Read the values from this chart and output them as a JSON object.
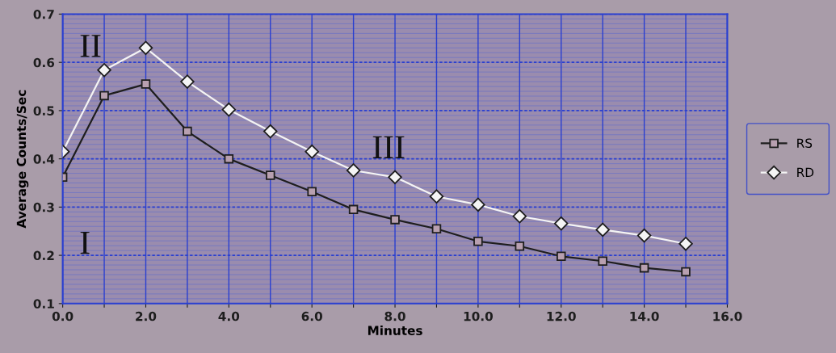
{
  "chart_data": {
    "type": "line",
    "xlabel": "Minutes",
    "ylabel": "Average Counts/Sec",
    "x": [
      0,
      1,
      2,
      3,
      4,
      5,
      6,
      7,
      8,
      9,
      10,
      11,
      12,
      13,
      14,
      15
    ],
    "series": [
      {
        "name": "RS",
        "color": "#1e1e1e",
        "marker": "square",
        "values": [
          0.362,
          0.531,
          0.555,
          0.457,
          0.4,
          0.366,
          0.332,
          0.295,
          0.274,
          0.255,
          0.229,
          0.219,
          0.198,
          0.188,
          0.174,
          0.166
        ]
      },
      {
        "name": "RD",
        "color": "#f4f4f4",
        "marker": "diamond",
        "values": [
          0.415,
          0.584,
          0.63,
          0.56,
          0.502,
          0.457,
          0.415,
          0.376,
          0.362,
          0.322,
          0.305,
          0.281,
          0.266,
          0.253,
          0.241,
          0.224
        ]
      }
    ],
    "xlim": [
      0,
      16
    ],
    "ylim": [
      0.1,
      0.7
    ],
    "xticks": [
      {
        "value": 0,
        "label": "0.0"
      },
      {
        "value": 1,
        "label": null
      },
      {
        "value": 2,
        "label": "2.0"
      },
      {
        "value": 3,
        "label": null
      },
      {
        "value": 4,
        "label": "4.0"
      },
      {
        "value": 5,
        "label": null
      },
      {
        "value": 6,
        "label": "6.0"
      },
      {
        "value": 7,
        "label": null
      },
      {
        "value": 8,
        "label": "8.0"
      },
      {
        "value": 9,
        "label": null
      },
      {
        "value": 10,
        "label": "10.0"
      },
      {
        "value": 11,
        "label": null
      },
      {
        "value": 12,
        "label": "12.0"
      },
      {
        "value": 13,
        "label": null
      },
      {
        "value": 14,
        "label": "14.0"
      },
      {
        "value": 15,
        "label": null
      },
      {
        "value": 16,
        "label": "16.0"
      }
    ],
    "yticks": [
      0.1,
      0.2,
      0.3,
      0.4,
      0.5,
      0.6,
      0.7
    ],
    "annotations": [
      "II",
      "I",
      "III"
    ],
    "grid": true,
    "legend": "right",
    "line_style": "solid"
  }
}
